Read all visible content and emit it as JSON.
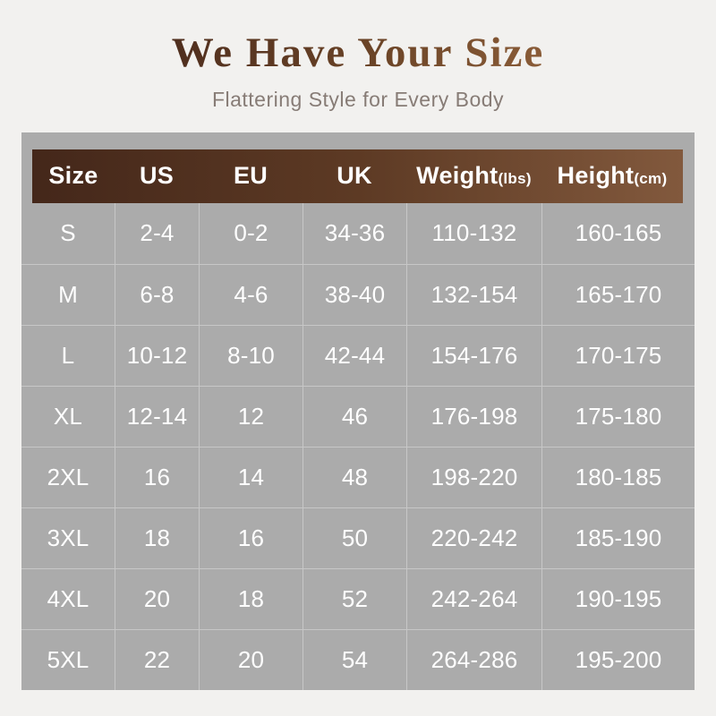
{
  "page": {
    "title": "We Have Your Size",
    "subtitle": "Flattering Style for Every Body"
  },
  "colors": {
    "page_bg": "#f2f1ef",
    "table_bg": "#ababab",
    "grid_line": "#c7c7c7",
    "header_gradient_start": "#44271a",
    "header_gradient_end": "#82593d",
    "title_gradient_start": "#4f2e1e",
    "title_gradient_end": "#8a5c38",
    "subtitle_text": "#877c76",
    "cell_text": "#ffffff"
  },
  "chart_data": {
    "type": "table",
    "title": "We Have Your Size",
    "subtitle": "Flattering Style for Every Body",
    "columns": [
      {
        "label": "Size",
        "unit": ""
      },
      {
        "label": "US",
        "unit": ""
      },
      {
        "label": "EU",
        "unit": ""
      },
      {
        "label": "UK",
        "unit": ""
      },
      {
        "label": "Weight",
        "unit": "(lbs)"
      },
      {
        "label": "Height",
        "unit": "(cm)"
      }
    ],
    "rows": [
      [
        "S",
        "2-4",
        "0-2",
        "34-36",
        "110-132",
        "160-165"
      ],
      [
        "M",
        "6-8",
        "4-6",
        "38-40",
        "132-154",
        "165-170"
      ],
      [
        "L",
        "10-12",
        "8-10",
        "42-44",
        "154-176",
        "170-175"
      ],
      [
        "XL",
        "12-14",
        "12",
        "46",
        "176-198",
        "175-180"
      ],
      [
        "2XL",
        "16",
        "14",
        "48",
        "198-220",
        "180-185"
      ],
      [
        "3XL",
        "18",
        "16",
        "50",
        "220-242",
        "185-190"
      ],
      [
        "4XL",
        "20",
        "18",
        "52",
        "242-264",
        "190-195"
      ],
      [
        "5XL",
        "22",
        "20",
        "54",
        "264-286",
        "195-200"
      ]
    ]
  }
}
